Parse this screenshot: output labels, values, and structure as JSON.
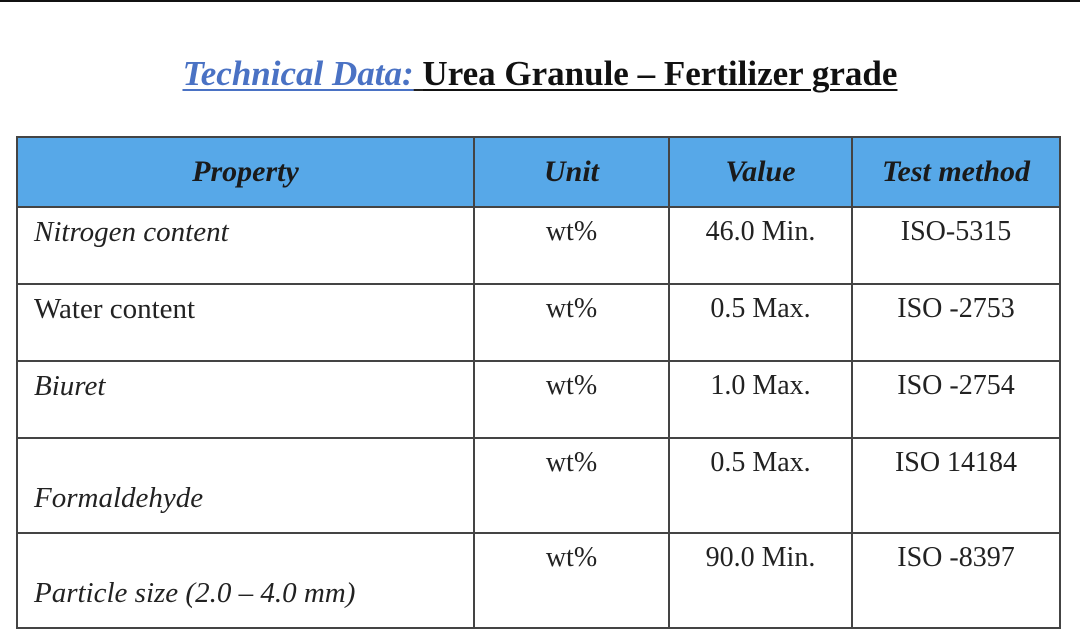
{
  "document": {
    "title_label": "Technical Data:",
    "title_text": "Urea Granule – Fertilizer grade"
  },
  "table": {
    "headers": {
      "property": "Property",
      "unit": "Unit",
      "value": "Value",
      "test_method": "Test method"
    },
    "rows": [
      {
        "property": "Nitrogen content",
        "unit": "wt%",
        "value": "46.0 Min.",
        "test_method": "ISO-5315"
      },
      {
        "property": "Water content",
        "unit": "wt%",
        "value": "0.5 Max.",
        "test_method": "ISO -2753"
      },
      {
        "property": "Biuret",
        "unit": "wt%",
        "value": "1.0 Max.",
        "test_method": "ISO -2754"
      },
      {
        "property": "Formaldehyde",
        "unit": "wt%",
        "value": "0.5 Max.",
        "test_method": "ISO 14184"
      },
      {
        "property": "Particle size (2.0 – 4.0 mm)",
        "unit": "wt%",
        "value": "90.0 Min.",
        "test_method": "ISO -8397"
      }
    ]
  },
  "colors": {
    "header_fill": "#57a8e8",
    "title_label": "#4a72c4"
  }
}
